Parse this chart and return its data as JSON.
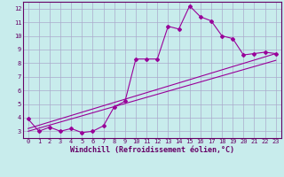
{
  "xlabel": "Windchill (Refroidissement éolien,°C)",
  "bg_color": "#c8ecec",
  "grid_color": "#aaaacc",
  "line_color": "#990099",
  "spine_color": "#660066",
  "xlim": [
    -0.5,
    23.5
  ],
  "ylim": [
    2.5,
    12.5
  ],
  "xticks": [
    0,
    1,
    2,
    3,
    4,
    5,
    6,
    7,
    8,
    9,
    10,
    11,
    12,
    13,
    14,
    15,
    16,
    17,
    18,
    19,
    20,
    21,
    22,
    23
  ],
  "yticks": [
    3,
    4,
    5,
    6,
    7,
    8,
    9,
    10,
    11,
    12
  ],
  "series1_x": [
    0,
    1,
    2,
    3,
    4,
    5,
    6,
    7,
    8,
    9,
    10,
    11,
    12,
    13,
    14,
    15,
    16,
    17,
    18,
    19,
    20,
    21,
    22,
    23
  ],
  "series1_y": [
    3.9,
    3.0,
    3.3,
    3.0,
    3.2,
    2.9,
    3.0,
    3.4,
    4.8,
    5.2,
    8.3,
    8.3,
    8.3,
    10.7,
    10.5,
    12.2,
    11.4,
    11.1,
    10.0,
    9.8,
    8.6,
    8.7,
    8.8,
    8.7
  ],
  "line1_x": [
    0,
    23
  ],
  "line1_y": [
    3.2,
    8.7
  ],
  "line2_x": [
    0,
    23
  ],
  "line2_y": [
    3.0,
    8.2
  ],
  "marker": "D",
  "markersize": 2.0,
  "linewidth": 0.8,
  "tick_fontsize": 5.0,
  "xlabel_fontsize": 6.0,
  "axis_color": "#660066"
}
